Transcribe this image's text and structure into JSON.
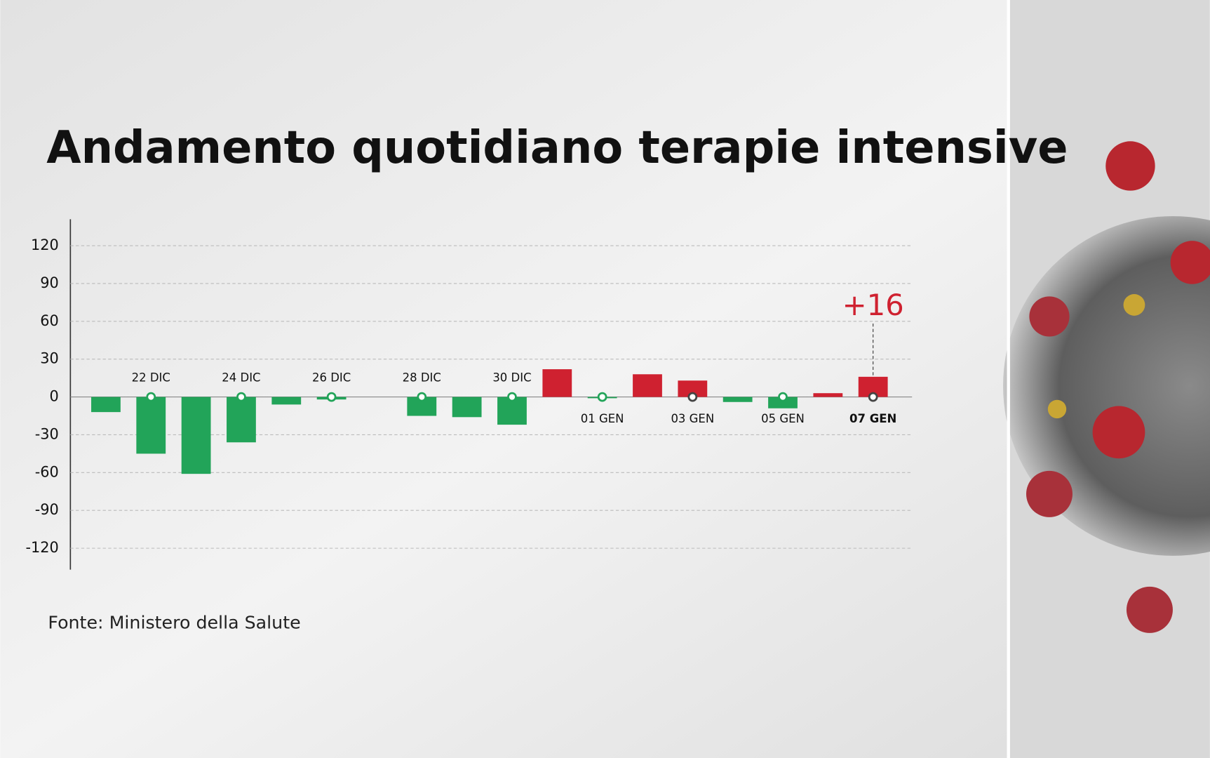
{
  "chart_data": {
    "type": "bar",
    "title": "Andamento quotidiano terapie intensive",
    "source": "Fonte: Ministero della Salute",
    "categories": [
      null,
      "22 DIC",
      null,
      "24 DIC",
      null,
      "26 DIC",
      null,
      "28 DIC",
      null,
      "30 DIC",
      null,
      "01 GEN",
      null,
      "03 GEN",
      null,
      "05 GEN",
      null,
      "07 GEN"
    ],
    "values": [
      -12,
      -45,
      -61,
      -36,
      -6,
      -2,
      0,
      -15,
      -16,
      -22,
      22,
      -1,
      18,
      13,
      -4,
      -9,
      3,
      16
    ],
    "value_labels": [
      null,
      null,
      null,
      null,
      null,
      null,
      null,
      null,
      null,
      null,
      null,
      null,
      null,
      null,
      null,
      null,
      null,
      "+16"
    ],
    "positive_color": "#cf2130",
    "negative_color": "#22a459",
    "ylim": [
      -137,
      141
    ],
    "yticks": [
      -120,
      -90,
      -60,
      -30,
      0,
      30,
      60,
      90,
      120
    ],
    "grid": true
  }
}
